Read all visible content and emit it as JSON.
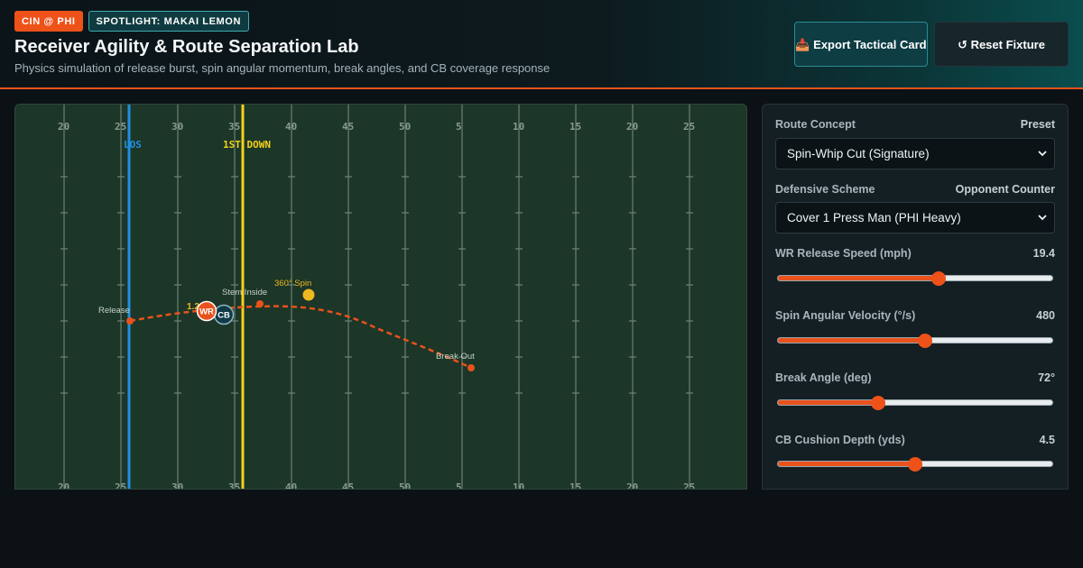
{
  "header": {
    "badge_matchup": "CIN @ PHI",
    "badge_spotlight": "SPOTLIGHT: MAKAI LEMON",
    "title": "Receiver Agility & Route Separation Lab",
    "subtitle": "Physics simulation of release burst, spin angular momentum, break angles, and CB coverage response",
    "export_label": "📥 Export Tactical Card",
    "reset_label": "↺ Reset Fixture"
  },
  "field": {
    "yard_numbers_top": [
      "20",
      "25",
      "30",
      "35",
      "40",
      "45",
      "50",
      "5",
      "10",
      "15",
      "20",
      "25"
    ],
    "yard_numbers_bottom": [
      "20",
      "25",
      "30",
      "35",
      "40",
      "45",
      "50",
      "5",
      "10",
      "15",
      "20",
      "25"
    ],
    "los_label": "LOS",
    "first_down_label": "1ST DOWN",
    "release_label": "Release",
    "stem_label": "Stem Inside",
    "spin_label": "360° Spin",
    "break_label": "Break Out",
    "separation_label": "1.2 yd",
    "wr_label": "WR",
    "cb_label": "CB",
    "colors": {
      "route": "#e8521c",
      "los": "#1e8fe0",
      "first_down": "#f2d21a",
      "spin": "#f0b820"
    }
  },
  "panel": {
    "route_concept_label": "Route Concept",
    "route_concept_tag": "Preset",
    "route_concept_value": "Spin-Whip Cut (Signature)",
    "defense_label": "Defensive Scheme",
    "defense_tag": "Opponent Counter",
    "defense_value": "Cover 1 Press Man (PHI Heavy)",
    "sliders": [
      {
        "label": "WR Release Speed (mph)",
        "display": "19.4",
        "fraction": 0.585
      },
      {
        "label": "Spin Angular Velocity (°/s)",
        "display": "480",
        "fraction": 0.535
      },
      {
        "label": "Break Angle (deg)",
        "display": "72°",
        "fraction": 0.365
      },
      {
        "label": "CB Cushion Depth (yds)",
        "display": "4.5",
        "fraction": 0.5
      }
    ]
  }
}
